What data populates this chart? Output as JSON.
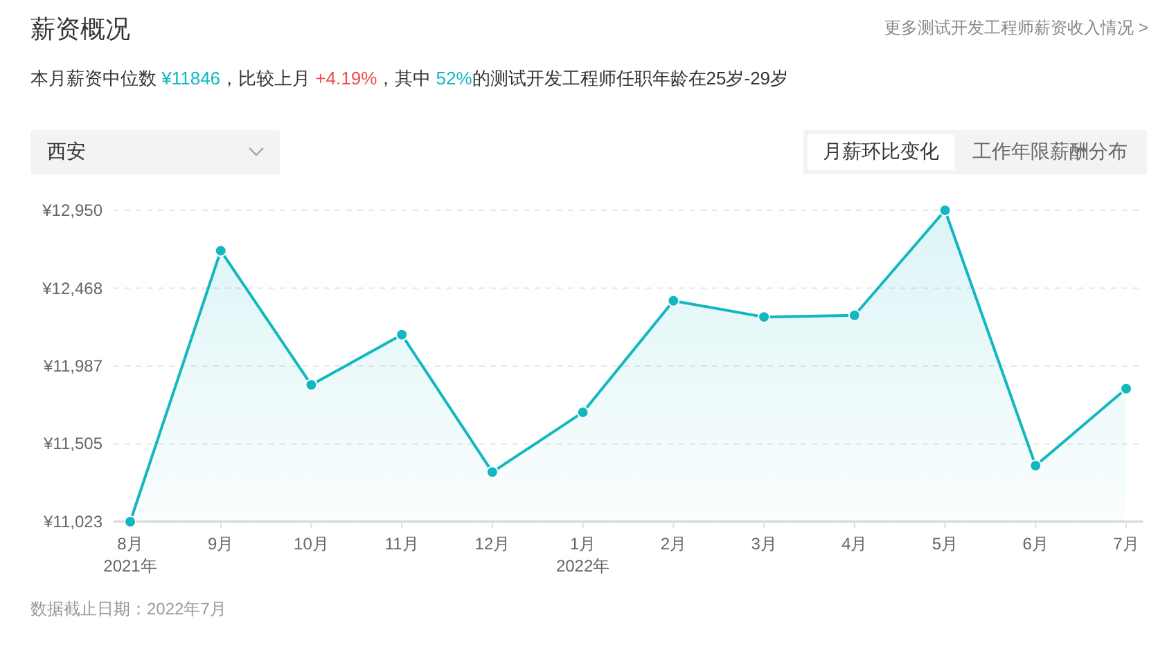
{
  "chart_data": {
    "type": "area",
    "title": "薪资概况",
    "subtitle": "本月薪资中位数 ¥11846，比较上月 +4.19%，其中 52%的测试开发工程师任职年龄在25岁-29岁",
    "annotations": [
      "更多测试开发工程师薪资收入情况 >",
      "西安",
      "月薪环比变化",
      "工作年限薪酬分布",
      "数据截止日期：2022年7月"
    ],
    "categories": [
      "8月\n2021年",
      "9月",
      "10月",
      "11月",
      "12月",
      "1月\n2022年",
      "2月",
      "3月",
      "4月",
      "5月",
      "6月",
      "7月"
    ],
    "series": [
      {
        "color": "#13b7c0",
        "values": [
          11023,
          12700,
          11870,
          12180,
          11330,
          11700,
          12390,
          12290,
          12300,
          12950,
          11370,
          11846
        ]
      }
    ],
    "ylim": [
      11023,
      12950
    ],
    "yticks": [
      {
        "value": 11023,
        "label": "¥11,023"
      },
      {
        "value": 11505,
        "label": "¥11,505"
      },
      {
        "value": 11987,
        "label": "¥11,987"
      },
      {
        "value": 12468,
        "label": "¥12,468"
      },
      {
        "value": 12950,
        "label": "¥12,950"
      }
    ],
    "grid": "y",
    "marker": "circle",
    "line_style": "solid"
  }
}
